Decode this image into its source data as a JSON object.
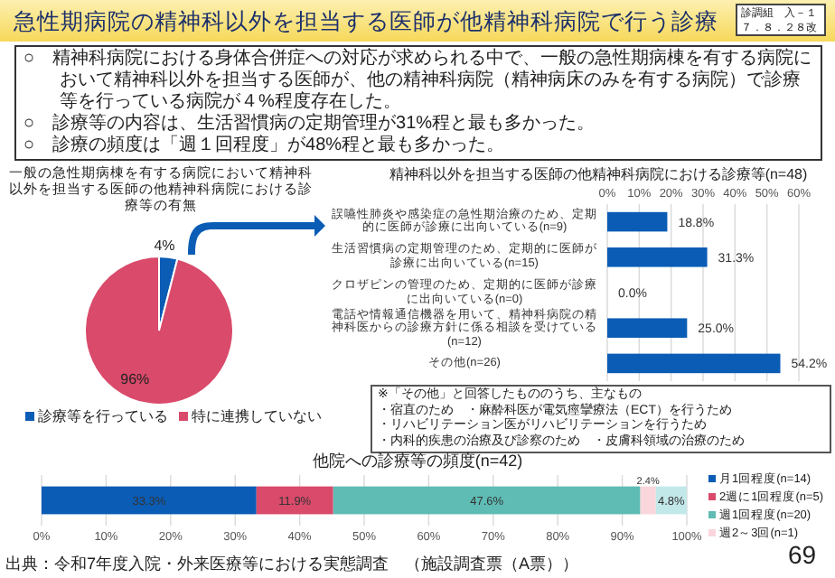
{
  "chart_data": [
    {
      "type": "other",
      "title": "急性期病院の精神科以外を担当する医師が他精神科病院で行う診療",
      "annotations": [
        "診調組　入－１",
        "７．８．２８改",
        "○　精神科病院における身体合併症への対応が求められる中で、一般の急性期病棟を有する病院において精神科以外を担当する医師が、他の精神科病院（精神病床のみを有する病院）で診療等を行っている病院が４%程度存在した。",
        "○　診療等の内容は、生活習慣病の定期管理が31%程と最も多かった。",
        "○　診療の頻度は「週１回程度」が48%程と最も多かった。",
        "出典：令和7年度入院・外来医療等における実態調査　（施設調査票（A票））",
        "69"
      ]
    },
    {
      "type": "pie",
      "title": "一般の急性期病棟を有する病院において精神科以外を担当する医師の他精神科病院における診療等の有無",
      "categories": [
        "診療等を行っている",
        "特に連携していない"
      ],
      "values": [
        4,
        96
      ],
      "colors": [
        "#0b5cb5",
        "#d94a6b"
      ],
      "value_labels": [
        "4%",
        "96%"
      ],
      "legend": "bottom"
    },
    {
      "type": "bar",
      "orientation": "horizontal",
      "title": "精神科以外を担当する医師の他精神科病院における診療等(n=48)",
      "categories": [
        "誤嚥性肺炎や感染症の急性期治療のため、定期的に医師が診療に出向いている(n=9)",
        "生活習慣病の定期管理のため、定期的に医師が診療に出向いている(n=15)",
        "クロザピンの管理のため、定期的に医師が診療に出向いている(n=0)",
        "電話や情報通信機器を用いて、精神科病院の精神科医からの診療方針に係る相談を受けている(n=12)",
        "その他(n=26)"
      ],
      "values": [
        18.8,
        31.3,
        0.0,
        25.0,
        54.2
      ],
      "color": "#0b5cb5",
      "value_labels": [
        "18.8%",
        "31.3%",
        "0.0%",
        "25.0%",
        "54.2%"
      ],
      "xlim": [
        0,
        60
      ],
      "xticks": [
        {
          "value": 0,
          "label": "0%"
        },
        {
          "value": 10,
          "label": "10%"
        },
        {
          "value": 20,
          "label": "20%"
        },
        {
          "value": 30,
          "label": "30%"
        },
        {
          "value": 40,
          "label": "40%"
        },
        {
          "value": 50,
          "label": "50%"
        },
        {
          "value": 60,
          "label": "60%"
        }
      ],
      "grid": "x",
      "annotations": [
        "※「その他」と回答したもののうち、主なもの",
        "・宿直のため　・麻酔科医が電気痙攣療法（ECT）を行うため",
        "・リハビリテーション医がリハビリテーションを行うため",
        "・内科的疾患の治療及び診察のため　・皮膚科領域の治療のため"
      ]
    },
    {
      "type": "bar",
      "orientation": "horizontal",
      "stacked": true,
      "title": "他院への診療等の頻度(n=42)",
      "categories": [
        null
      ],
      "series": [
        {
          "name": "月1回程度(n=14)",
          "color": "#0b5cb5",
          "values": [
            33.3
          ],
          "value_labels": [
            "33.3%"
          ]
        },
        {
          "name": "2週に1回程度(n=5)",
          "color": "#d94a6b",
          "values": [
            11.9
          ],
          "value_labels": [
            "11.9%"
          ]
        },
        {
          "name": "週1回程度(n=20)",
          "color": "#5fbcb4",
          "values": [
            47.6
          ],
          "value_labels": [
            "47.6%"
          ]
        },
        {
          "name": "週2～3回(n=1)",
          "color": "#f9d6dc",
          "values": [
            2.4
          ],
          "value_labels": [
            "2.4%"
          ]
        },
        {
          "color": "#c3e8ea",
          "values": [
            4.8
          ],
          "value_labels": [
            "4.8%"
          ]
        }
      ],
      "xlim": [
        0,
        100
      ],
      "xticks": [
        {
          "value": 0,
          "label": "0%"
        },
        {
          "value": 10,
          "label": "10%"
        },
        {
          "value": 20,
          "label": "20%"
        },
        {
          "value": 30,
          "label": "30%"
        },
        {
          "value": 40,
          "label": "40%"
        },
        {
          "value": 50,
          "label": "50%"
        },
        {
          "value": 60,
          "label": "60%"
        },
        {
          "value": 70,
          "label": "70%"
        },
        {
          "value": 80,
          "label": "80%"
        },
        {
          "value": 90,
          "label": "90%"
        },
        {
          "value": 100,
          "label": "100%"
        }
      ],
      "grid": "x",
      "legend": "right"
    }
  ]
}
